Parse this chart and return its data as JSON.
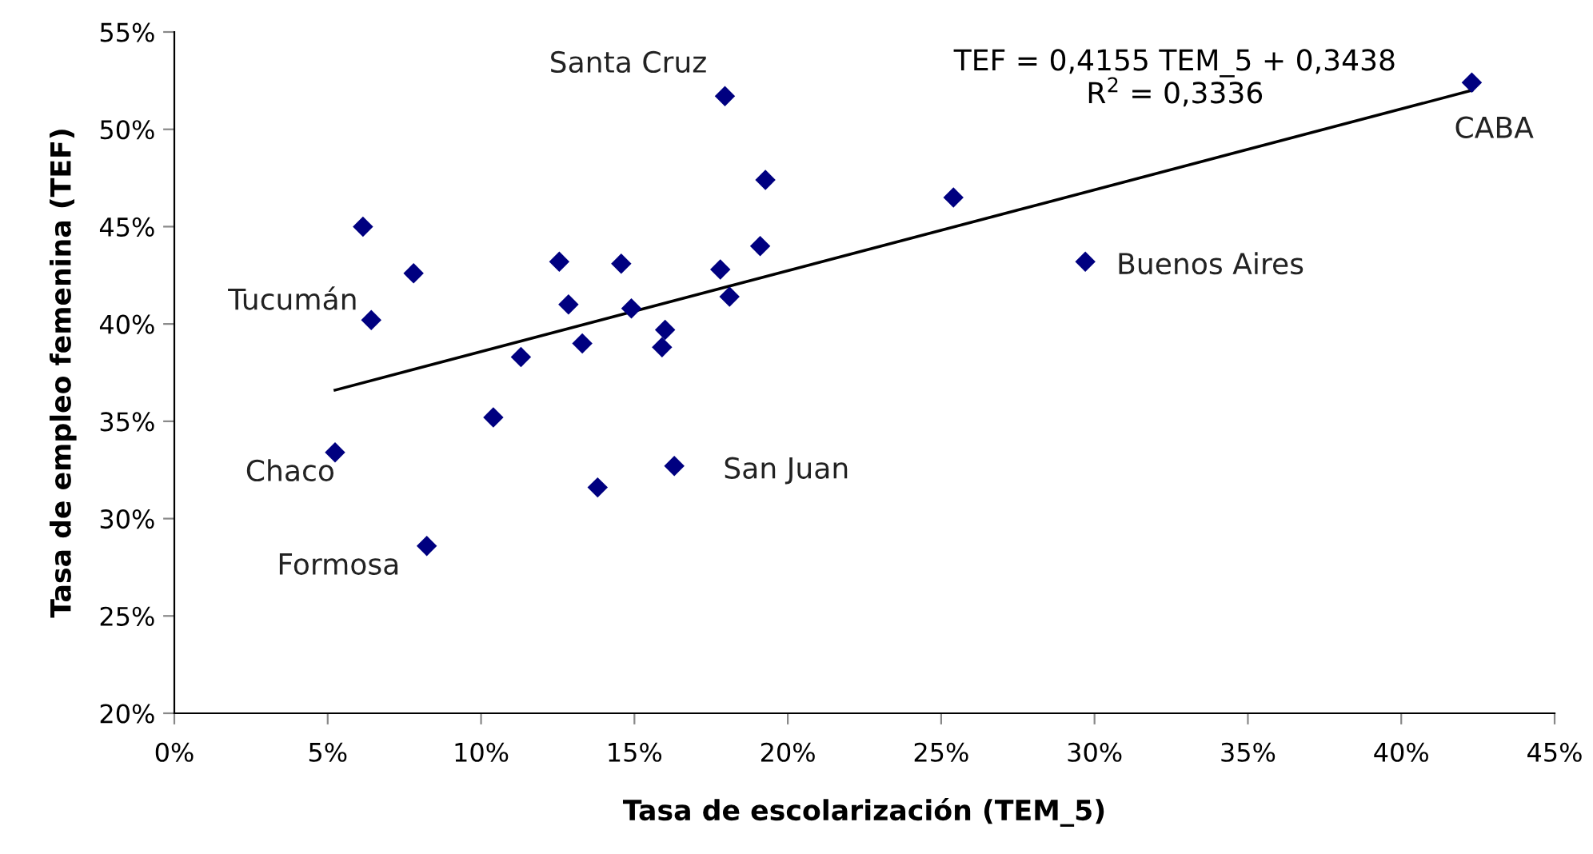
{
  "chart_data": {
    "type": "scatter",
    "xlabel": "Tasa de escolarización (TEM_5)",
    "ylabel": "Tasa de empleo femenina (TEF)",
    "x": [
      17.95,
      19.27,
      6.15,
      7.8,
      12.55,
      14.57,
      17.8,
      19.1,
      6.42,
      12.85,
      14.9,
      18.1,
      16.0,
      15.9,
      13.3,
      11.3,
      10.4,
      5.24,
      16.3,
      13.8,
      8.23,
      25.4,
      29.7,
      42.3
    ],
    "series": [
      {
        "color": "#000080",
        "marker": "diamond",
        "values": [
          51.7,
          47.4,
          45.0,
          42.6,
          43.2,
          43.1,
          42.8,
          44.0,
          40.2,
          41.0,
          40.8,
          41.4,
          39.7,
          38.8,
          39.0,
          38.3,
          35.2,
          33.4,
          32.7,
          31.6,
          28.6,
          46.5,
          43.2,
          52.4
        ]
      },
      {
        "type": "line",
        "color": "#000000",
        "x": [
          5.24,
          42.3
        ],
        "values": [
          36.6,
          52.0
        ]
      }
    ],
    "xlim": [
      0,
      45
    ],
    "xticks": [
      {
        "value": 0,
        "label": "0%"
      },
      {
        "value": 5,
        "label": "5%"
      },
      {
        "value": 10,
        "label": "10%"
      },
      {
        "value": 15,
        "label": "15%"
      },
      {
        "value": 20,
        "label": "20%"
      },
      {
        "value": 25,
        "label": "25%"
      },
      {
        "value": 30,
        "label": "30%"
      },
      {
        "value": 35,
        "label": "35%"
      },
      {
        "value": 40,
        "label": "40%"
      },
      {
        "value": 45,
        "label": "45%"
      }
    ],
    "ylim": [
      20,
      55
    ],
    "yticks": [
      {
        "value": 20,
        "label": "20%"
      },
      {
        "value": 25,
        "label": "25%"
      },
      {
        "value": 30,
        "label": "30%"
      },
      {
        "value": 35,
        "label": "35%"
      },
      {
        "value": 40,
        "label": "40%"
      },
      {
        "value": 45,
        "label": "45%"
      },
      {
        "value": 50,
        "label": "50%"
      },
      {
        "value": 55,
        "label": "55%"
      }
    ],
    "grid": false,
    "annotations": [
      {
        "text": "Santa Cruz",
        "x": 17.95,
        "y": 51.7
      },
      {
        "text": "Tucumán",
        "x": 6.42,
        "y": 40.2
      },
      {
        "text": "Chaco",
        "x": 5.24,
        "y": 33.4
      },
      {
        "text": "Formosa",
        "x": 8.23,
        "y": 28.6
      },
      {
        "text": "San Juan",
        "x": 16.3,
        "y": 32.7
      },
      {
        "text": "Buenos Aires",
        "x": 29.7,
        "y": 43.2
      },
      {
        "text": "CABA",
        "x": 42.3,
        "y": 52.4
      },
      "TEF = 0,4155 TEM_5 + 0,3438\nR$^{2}$ = 0,3336"
    ]
  }
}
